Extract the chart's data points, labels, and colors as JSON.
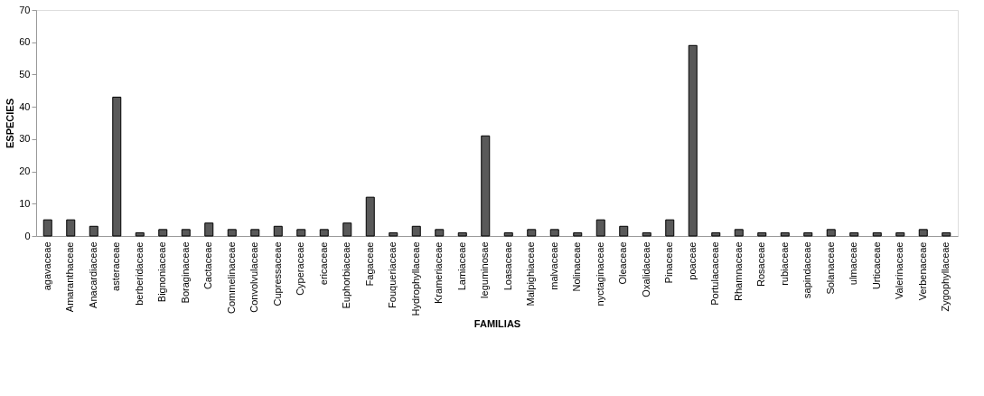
{
  "chart_data": {
    "type": "bar",
    "xlabel": "FAMILIAS",
    "ylabel": "ESPECIES",
    "categories": [
      "agavaceae",
      "Amaranthaceae",
      "Anacardiaceae",
      "asteraceae",
      "berberidaceae",
      "Bignoniaceae",
      "Boraginaceae",
      "Cactaceae",
      "Commelinaceae",
      "Convolvulaceae",
      "Cupressaceae",
      "Cyperaceae",
      "ericaceae",
      "Euphorbiaceae",
      "Fagaceae",
      "Fouqueriaceae",
      "Hydrophyllaceae",
      "Krameriaceae",
      "Lamiaceae",
      "leguminosae",
      "Loasaceae",
      "Malpighiaceae",
      "malvaceae",
      "Nolinaceae",
      "nyctaginaceae",
      "Oleaceae",
      "Oxalidaceae",
      "Pinaceae",
      "poaceae",
      "Portulacaceae",
      "Rhamnaceae",
      "Rosaceae",
      "rubiaceae",
      "sapindaceae",
      "Solanaceae",
      "ulmaceae",
      "Urticaceae",
      "Valerinaceae",
      "Verbenaceae",
      "Zygophyllaceae"
    ],
    "values": [
      5,
      5,
      3,
      43,
      1,
      2,
      2,
      4,
      2,
      2,
      3,
      2,
      2,
      4,
      12,
      1,
      3,
      2,
      1,
      31,
      1,
      2,
      2,
      1,
      5,
      3,
      1,
      5,
      59,
      1,
      2,
      1,
      1,
      1,
      2,
      1,
      1,
      1,
      2,
      1
    ],
    "color": "#595959",
    "ylim": [
      0,
      70
    ],
    "yticks": [
      0,
      10,
      20,
      30,
      40,
      50,
      60,
      70
    ],
    "grid": false
  }
}
